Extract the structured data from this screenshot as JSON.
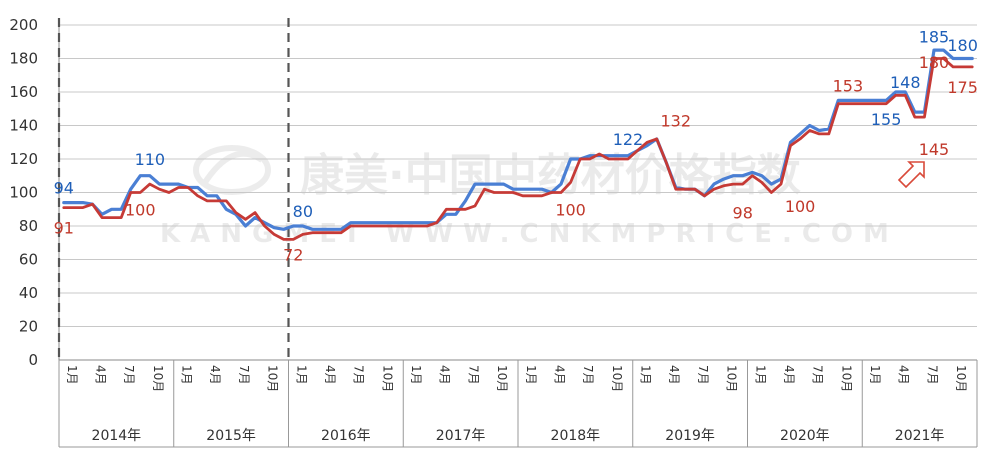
{
  "chart_data": {
    "type": "line",
    "title": "",
    "xlabel": "",
    "ylabel": "",
    "ylim": [
      0,
      200
    ],
    "yticks": [
      0,
      20,
      40,
      60,
      80,
      100,
      120,
      140,
      160,
      180,
      200
    ],
    "grid": true,
    "legend": "none",
    "month_tick_labels": [
      "1月",
      "4月",
      "7月",
      "10月"
    ],
    "years": [
      "2014年",
      "2015年",
      "2016年",
      "2017年",
      "2018年",
      "2019年",
      "2020年",
      "2021年"
    ],
    "x": [
      "2014-01",
      "2014-02",
      "2014-03",
      "2014-04",
      "2014-05",
      "2014-06",
      "2014-07",
      "2014-08",
      "2014-09",
      "2014-10",
      "2014-11",
      "2014-12",
      "2015-01",
      "2015-02",
      "2015-03",
      "2015-04",
      "2015-05",
      "2015-06",
      "2015-07",
      "2015-08",
      "2015-09",
      "2015-10",
      "2015-11",
      "2015-12",
      "2016-01",
      "2016-02",
      "2016-03",
      "2016-04",
      "2016-05",
      "2016-06",
      "2016-07",
      "2016-08",
      "2016-09",
      "2016-10",
      "2016-11",
      "2016-12",
      "2017-01",
      "2017-02",
      "2017-03",
      "2017-04",
      "2017-05",
      "2017-06",
      "2017-07",
      "2017-08",
      "2017-09",
      "2017-10",
      "2017-11",
      "2017-12",
      "2018-01",
      "2018-02",
      "2018-03",
      "2018-04",
      "2018-05",
      "2018-06",
      "2018-07",
      "2018-08",
      "2018-09",
      "2018-10",
      "2018-11",
      "2018-12",
      "2019-01",
      "2019-02",
      "2019-03",
      "2019-04",
      "2019-05",
      "2019-06",
      "2019-07",
      "2019-08",
      "2019-09",
      "2019-10",
      "2019-11",
      "2019-12",
      "2020-01",
      "2020-02",
      "2020-03",
      "2020-04",
      "2020-05",
      "2020-06",
      "2020-07",
      "2020-08",
      "2020-09",
      "2020-10",
      "2020-11",
      "2020-12",
      "2021-01",
      "2021-02",
      "2021-03",
      "2021-04",
      "2021-05",
      "2021-06",
      "2021-07",
      "2021-08",
      "2021-09",
      "2021-10",
      "2021-11",
      "2021-12"
    ],
    "series": [
      {
        "color": "#4a7fd4",
        "values": [
          94,
          94,
          94,
          93,
          87,
          90,
          90,
          102,
          110,
          110,
          105,
          105,
          105,
          103,
          103,
          98,
          98,
          90,
          87,
          80,
          85,
          82,
          79,
          78,
          80,
          80,
          78,
          78,
          78,
          78,
          82,
          82,
          82,
          82,
          82,
          82,
          82,
          82,
          82,
          82,
          87,
          87,
          95,
          105,
          105,
          105,
          105,
          102,
          102,
          102,
          102,
          100,
          105,
          120,
          120,
          122,
          122,
          122,
          122,
          122,
          125,
          128,
          132,
          118,
          103,
          102,
          102,
          98,
          105,
          108,
          110,
          110,
          112,
          110,
          105,
          108,
          130,
          135,
          140,
          137,
          138,
          155,
          155,
          155,
          155,
          155,
          155,
          160,
          160,
          148,
          148,
          185,
          185,
          180,
          180,
          180
        ]
      },
      {
        "color": "#c63a36",
        "values": [
          91,
          91,
          91,
          93,
          85,
          85,
          85,
          100,
          100,
          105,
          102,
          100,
          103,
          103,
          98,
          95,
          95,
          95,
          88,
          84,
          88,
          80,
          75,
          72,
          72,
          75,
          76,
          76,
          76,
          76,
          80,
          80,
          80,
          80,
          80,
          80,
          80,
          80,
          80,
          82,
          90,
          90,
          90,
          92,
          102,
          100,
          100,
          100,
          98,
          98,
          98,
          100,
          100,
          106,
          120,
          120,
          123,
          120,
          120,
          120,
          125,
          130,
          132,
          118,
          102,
          102,
          102,
          98,
          102,
          104,
          105,
          105,
          110,
          106,
          100,
          105,
          128,
          132,
          137,
          135,
          135,
          153,
          153,
          153,
          153,
          153,
          153,
          158,
          158,
          145,
          145,
          180,
          180,
          175,
          175,
          175
        ]
      }
    ],
    "annotations": [
      {
        "text": "94",
        "color": "#1f5fb8",
        "x": "2014-01",
        "y": 103
      },
      {
        "text": "91",
        "color": "#c0392b",
        "x": "2014-01",
        "y": 79
      },
      {
        "text": "110",
        "color": "#1f5fb8",
        "x": "2014-10",
        "y": 120
      },
      {
        "text": "100",
        "color": "#c0392b",
        "x": "2014-09",
        "y": 90
      },
      {
        "text": "80",
        "color": "#1f5fb8",
        "x": "2016-02",
        "y": 89
      },
      {
        "text": "72",
        "color": "#c0392b",
        "x": "2016-01",
        "y": 63
      },
      {
        "text": "100",
        "color": "#c0392b",
        "x": "2018-06",
        "y": 90
      },
      {
        "text": "122",
        "color": "#1f5fb8",
        "x": "2018-12",
        "y": 132
      },
      {
        "text": "132",
        "color": "#c0392b",
        "x": "2019-05",
        "y": 143
      },
      {
        "text": "98",
        "color": "#c0392b",
        "x": "2019-12",
        "y": 88
      },
      {
        "text": "100",
        "color": "#c0392b",
        "x": "2020-06",
        "y": 92
      },
      {
        "text": "153",
        "color": "#c0392b",
        "x": "2020-11",
        "y": 164
      },
      {
        "text": "155",
        "color": "#1f5fb8",
        "x": "2021-03",
        "y": 144
      },
      {
        "text": "148",
        "color": "#1f5fb8",
        "x": "2021-05",
        "y": 166
      },
      {
        "text": "185",
        "color": "#1f5fb8",
        "x": "2021-08",
        "y": 193
      },
      {
        "text": "180",
        "color": "#c0392b",
        "x": "2021-08",
        "y": 178
      },
      {
        "text": "145",
        "color": "#c0392b",
        "x": "2021-08",
        "y": 126
      },
      {
        "text": "180",
        "color": "#1f5fb8",
        "x": "2021-11",
        "y": 188
      },
      {
        "text": "175",
        "color": "#c0392b",
        "x": "2021-11",
        "y": 163
      }
    ]
  },
  "watermark": {
    "text": "康美·中国中药材价格指数",
    "subtext": "KANGMEI  WWW.CNKMPRICE.COM"
  },
  "icons": {
    "arrow": "up-right-arrow-icon",
    "watermark_logo": "kangmei-logo-icon"
  }
}
